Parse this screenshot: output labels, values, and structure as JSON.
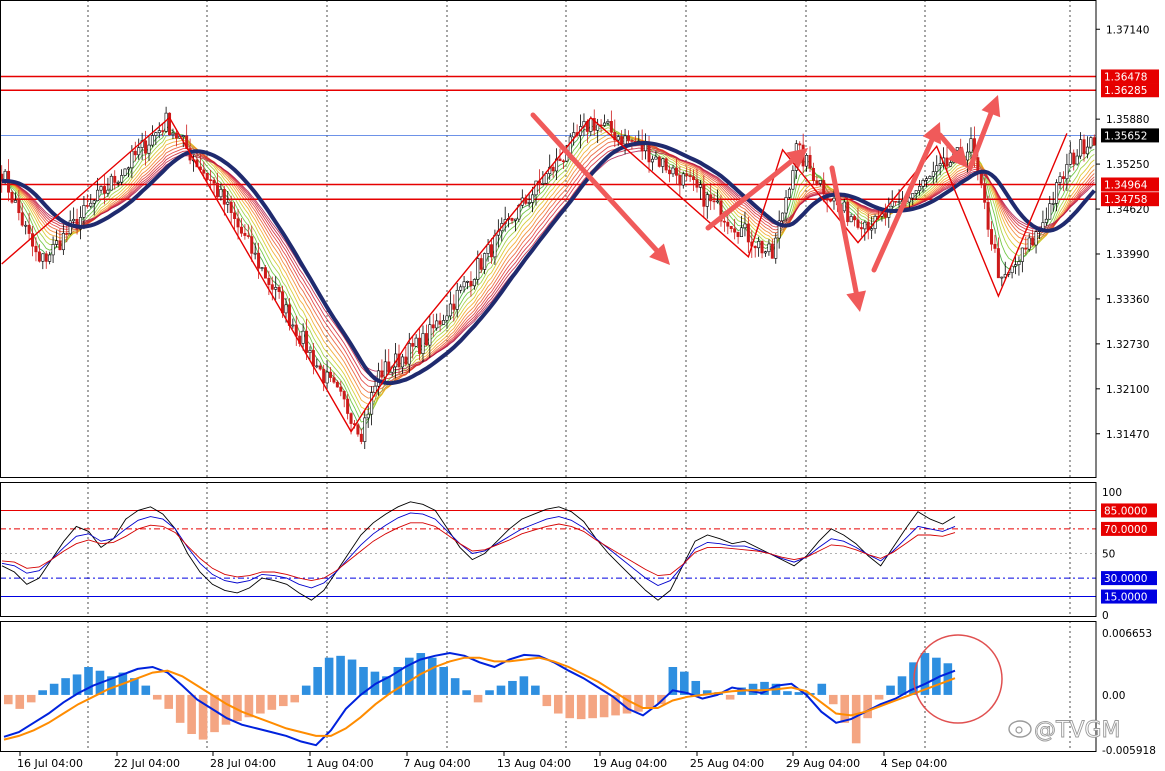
{
  "chart_data": [
    {
      "panel": "price",
      "type": "candlestick",
      "y_axis_ticks": [
        "1.37140",
        "1.35880",
        "1.35250",
        "1.34620",
        "1.33990",
        "1.33360",
        "1.32730",
        "1.32100",
        "1.31470"
      ],
      "ylim": [
        1.3085,
        1.3755
      ],
      "x_axis_ticks": [
        "16 Jul 04:00",
        "22 Jul 04:00",
        "28 Jul 04:00",
        "1 Aug 04:00",
        "7 Aug 04:00",
        "13 Aug 04:00",
        "19 Aug 04:00",
        "25 Aug 04:00",
        "29 Aug 04:00",
        "4 Sep 04:00"
      ],
      "horizontal_levels": [
        {
          "value": "1.36478",
          "price": 1.36478,
          "color": "#e60000",
          "style": "solid"
        },
        {
          "value": "1.36285",
          "price": 1.36285,
          "color": "#e60000",
          "style": "solid"
        },
        {
          "value": "1.34964",
          "price": 1.34964,
          "color": "#e60000",
          "style": "solid"
        },
        {
          "value": "1.34758",
          "price": 1.34758,
          "color": "#e60000",
          "style": "solid"
        }
      ],
      "current_price": {
        "value": "1.35652",
        "price": 1.35652,
        "color": "#3d6fe0"
      },
      "key_points": [
        {
          "bar": 0,
          "price": 1.3515
        },
        {
          "bar": 11,
          "price": 1.3385
        },
        {
          "bar": 48,
          "price": 1.3585
        },
        {
          "bar": 62,
          "price": 1.3495
        },
        {
          "bar": 93,
          "price": 1.3235
        },
        {
          "bar": 102,
          "price": 1.3175
        },
        {
          "bar": 105,
          "price": 1.315
        },
        {
          "bar": 110,
          "price": 1.323
        },
        {
          "bar": 124,
          "price": 1.328
        },
        {
          "bar": 150,
          "price": 1.3455
        },
        {
          "bar": 172,
          "price": 1.3585
        },
        {
          "bar": 188,
          "price": 1.3545
        },
        {
          "bar": 200,
          "price": 1.35
        },
        {
          "bar": 225,
          "price": 1.3395
        },
        {
          "bar": 232,
          "price": 1.3545
        },
        {
          "bar": 245,
          "price": 1.346
        },
        {
          "bar": 255,
          "price": 1.344
        },
        {
          "bar": 275,
          "price": 1.352
        },
        {
          "bar": 283,
          "price": 1.355
        },
        {
          "bar": 292,
          "price": 1.3355
        },
        {
          "bar": 302,
          "price": 1.3425
        },
        {
          "bar": 312,
          "price": 1.353
        },
        {
          "bar": 318,
          "price": 1.3565
        }
      ],
      "zigzag": [
        {
          "bar": 0,
          "price": 1.3385
        },
        {
          "bar": 49,
          "price": 1.359
        },
        {
          "bar": 102,
          "price": 1.315
        },
        {
          "bar": 119,
          "price": 1.3278
        },
        {
          "bar": 172,
          "price": 1.359
        },
        {
          "bar": 218,
          "price": 1.3395
        },
        {
          "bar": 228,
          "price": 1.3545
        },
        {
          "bar": 250,
          "price": 1.3415
        },
        {
          "bar": 273,
          "price": 1.355
        },
        {
          "bar": 291,
          "price": 1.334
        },
        {
          "bar": 311,
          "price": 1.3568
        }
      ]
    },
    {
      "panel": "oscillator",
      "type": "line",
      "series": [
        {
          "color": "#000000",
          "values": [
            40,
            35,
            25,
            30,
            45,
            60,
            72,
            68,
            55,
            62,
            78,
            85,
            88,
            82,
            70,
            50,
            35,
            25,
            20,
            18,
            22,
            30,
            28,
            25,
            18,
            12,
            20,
            35,
            50,
            65,
            75,
            82,
            88,
            92,
            90,
            85,
            70,
            55,
            45,
            50,
            60,
            70,
            78,
            82,
            86,
            88,
            84,
            76,
            62,
            50,
            40,
            30,
            20,
            12,
            20,
            40,
            60,
            65,
            62,
            58,
            60,
            55,
            50,
            45,
            40,
            48,
            60,
            70,
            65,
            58,
            48,
            40,
            55,
            70,
            84,
            78,
            74,
            80
          ]
        },
        {
          "color": "#0000cc",
          "values": [
            42,
            40,
            34,
            36,
            45,
            55,
            64,
            66,
            60,
            62,
            70,
            77,
            80,
            78,
            70,
            55,
            42,
            33,
            28,
            26,
            28,
            33,
            32,
            30,
            25,
            22,
            26,
            35,
            46,
            57,
            66,
            73,
            79,
            83,
            82,
            78,
            68,
            58,
            50,
            52,
            58,
            64,
            70,
            74,
            78,
            80,
            77,
            71,
            62,
            54,
            46,
            38,
            30,
            24,
            28,
            40,
            54,
            59,
            58,
            56,
            56,
            53,
            50,
            46,
            43,
            47,
            55,
            62,
            60,
            55,
            49,
            44,
            52,
            62,
            72,
            70,
            68,
            72
          ]
        },
        {
          "color": "#d40000",
          "values": [
            44,
            43,
            38,
            39,
            45,
            52,
            58,
            61,
            58,
            59,
            64,
            70,
            73,
            72,
            67,
            56,
            46,
            38,
            33,
            31,
            32,
            35,
            35,
            33,
            30,
            28,
            30,
            36,
            44,
            52,
            60,
            66,
            71,
            75,
            75,
            72,
            65,
            58,
            52,
            53,
            57,
            61,
            66,
            69,
            72,
            74,
            72,
            68,
            61,
            55,
            49,
            43,
            37,
            32,
            33,
            41,
            51,
            55,
            55,
            54,
            53,
            52,
            50,
            47,
            45,
            47,
            52,
            57,
            56,
            53,
            49,
            46,
            51,
            58,
            65,
            65,
            64,
            67
          ]
        }
      ],
      "ylim": [
        0,
        100
      ],
      "y_axis_ticks": [
        "100",
        "50",
        "0"
      ],
      "levels": [
        {
          "value": "85.0000",
          "level": 85,
          "color": "#e60000"
        },
        {
          "value": "70.0000",
          "level": 70,
          "color": "#e60000"
        },
        {
          "value": "30.0000",
          "level": 30,
          "color": "#0000e0"
        },
        {
          "value": "15.0000",
          "level": 15,
          "color": "#0000e0"
        }
      ]
    },
    {
      "panel": "macd",
      "type": "bar",
      "y_axis_ticks": [
        "0.006653",
        "0.00",
        "-0.005918"
      ],
      "ylim": [
        -0.005918,
        0.006653
      ],
      "histogram": [
        -0.001,
        -0.0015,
        -0.0008,
        0.0005,
        0.0012,
        0.0018,
        0.0022,
        0.003,
        0.0026,
        0.002,
        0.0024,
        0.0018,
        0.001,
        -0.0005,
        -0.0015,
        -0.003,
        -0.0042,
        -0.0048,
        -0.004,
        -0.0032,
        -0.0028,
        -0.0024,
        -0.002,
        -0.0016,
        -0.0012,
        -0.0008,
        0.001,
        0.003,
        0.004,
        0.0042,
        0.0038,
        0.003,
        0.0025,
        0.002,
        0.003,
        0.004,
        0.0045,
        0.004,
        0.003,
        0.0018,
        0.0005,
        -0.0008,
        0.0005,
        0.001,
        0.0015,
        0.002,
        0.001,
        -0.0012,
        -0.002,
        -0.0025,
        -0.0026,
        -0.0025,
        -0.0024,
        -0.0022,
        -0.002,
        -0.0018,
        -0.0015,
        -0.001,
        0.003,
        0.0025,
        0.0015,
        0.0005,
        0.0003,
        -0.0005,
        0.0008,
        0.0012,
        0.0014,
        0.0012,
        0.0004,
        0.0003,
        0.0002,
        0.0012,
        -0.001,
        -0.003,
        -0.0052,
        -0.0025,
        -0.0005,
        0.001,
        0.002,
        0.0035,
        0.0045,
        0.004,
        0.0034
      ],
      "series": [
        {
          "color": "#0022dd",
          "values": [
            -0.0045,
            -0.004,
            -0.003,
            -0.002,
            -0.0008,
            0.0002,
            0.001,
            0.0016,
            0.0022,
            0.0028,
            0.003,
            0.0024,
            0.001,
            -0.0005,
            -0.0015,
            -0.0025,
            -0.0032,
            -0.0036,
            -0.004,
            -0.0044,
            -0.005,
            -0.0054,
            -0.0038,
            -0.0015,
            0.0,
            0.0012,
            0.002,
            0.003,
            0.0038,
            0.0042,
            0.0045,
            0.0042,
            0.0035,
            0.003,
            0.0038,
            0.0043,
            0.0042,
            0.0035,
            0.0026,
            0.0018,
            0.0008,
            -0.0002,
            -0.0015,
            -0.0022,
            -0.001,
            0.0005,
            0.0002,
            -0.0004,
            0.0,
            0.0008,
            0.0005,
            0.0002,
            0.001,
            0.0012,
            0.0,
            -0.0018,
            -0.003,
            -0.0026,
            -0.0018,
            -0.001,
            -0.0004,
            0.0005,
            0.0012,
            0.002,
            0.0026
          ]
        },
        {
          "color": "#ff8c00",
          "values": [
            -0.0048,
            -0.0044,
            -0.0038,
            -0.003,
            -0.002,
            -0.001,
            -0.0002,
            0.0006,
            0.0012,
            0.0018,
            0.0024,
            0.0026,
            0.002,
            0.001,
            0.0,
            -0.001,
            -0.0018,
            -0.0024,
            -0.003,
            -0.0036,
            -0.004,
            -0.0044,
            -0.0044,
            -0.0036,
            -0.0024,
            -0.001,
            0.0002,
            0.0012,
            0.0022,
            0.003,
            0.0036,
            0.004,
            0.004,
            0.0036,
            0.0036,
            0.0038,
            0.004,
            0.0036,
            0.003,
            0.0022,
            0.0014,
            0.0004,
            -0.0006,
            -0.0014,
            -0.0014,
            -0.0006,
            -0.0002,
            0.0,
            0.0002,
            0.0004,
            0.0005,
            0.0005,
            0.0006,
            0.0008,
            0.0004,
            -0.0008,
            -0.002,
            -0.0022,
            -0.0018,
            -0.0012,
            -0.0006,
            0.0,
            0.0006,
            0.0012,
            0.0018
          ]
        }
      ]
    }
  ],
  "watermark": {
    "text": "@TVGM",
    "icon": "weibo-like-logo-icon"
  },
  "colors": {
    "price_up": "#000000",
    "price_down": "#cc1a1a",
    "level_red": "#e60000",
    "sma_navy": "#1f2a6e",
    "zigzag": "#e60000",
    "arrows": "#f05a5a",
    "hist_pos": "#2e8fe0",
    "hist_neg": "#f4a582",
    "annotation": "#e05050"
  }
}
